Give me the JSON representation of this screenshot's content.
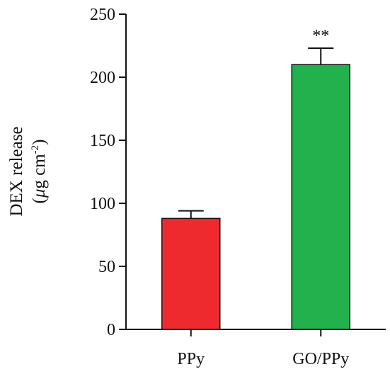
{
  "chart_data": {
    "type": "bar",
    "categories": [
      "PPy",
      "GO/PPy"
    ],
    "values": [
      88,
      210
    ],
    "errors": [
      6,
      13
    ],
    "significance": [
      "",
      "**"
    ],
    "bar_colors": [
      "#ee2a2f",
      "#22b14c"
    ],
    "ylabel_line1": "DEX release",
    "ylabel_line2_prefix": "(",
    "ylabel_mu": "μ",
    "ylabel_unit": "g cm",
    "ylabel_exp": "-2",
    "ylabel_suffix": ")",
    "ylim": [
      0,
      250
    ],
    "yticks": [
      0,
      50,
      100,
      150,
      200,
      250
    ],
    "grid": false
  }
}
